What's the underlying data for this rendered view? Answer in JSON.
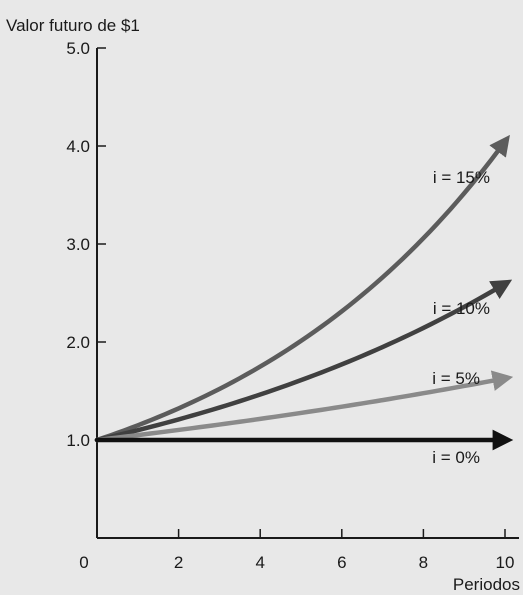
{
  "chart_data": {
    "type": "line",
    "ylabel": "Valor futuro de $1",
    "xlabel": "Periodos",
    "xlim": [
      0,
      10
    ],
    "ylim": [
      0,
      5
    ],
    "x_ticks": [
      0,
      2,
      4,
      6,
      8,
      10
    ],
    "x_tick_labels": [
      "0",
      "2",
      "4",
      "6",
      "8",
      "10"
    ],
    "y_ticks": [
      1,
      2,
      3,
      4,
      5
    ],
    "y_tick_labels": [
      "1.0",
      "2.0",
      "3.0",
      "4.0",
      "5.0"
    ],
    "grid": false,
    "legend": "none",
    "series": [
      {
        "name": "i = 15%",
        "rate": 0.15,
        "color": "#5c5c5c",
        "x": [
          0,
          1,
          2,
          3,
          4,
          5,
          6,
          7,
          8,
          9,
          10
        ],
        "values": [
          1.0,
          1.15,
          1.32,
          1.52,
          1.75,
          2.01,
          2.31,
          2.66,
          3.06,
          3.52,
          4.05
        ]
      },
      {
        "name": "i = 10%",
        "rate": 0.1,
        "color": "#404040",
        "x": [
          0,
          1,
          2,
          3,
          4,
          5,
          6,
          7,
          8,
          9,
          10
        ],
        "values": [
          1.0,
          1.1,
          1.21,
          1.33,
          1.46,
          1.61,
          1.77,
          1.95,
          2.14,
          2.36,
          2.59
        ]
      },
      {
        "name": "i = 5%",
        "rate": 0.05,
        "color": "#8a8a8a",
        "x": [
          0,
          1,
          2,
          3,
          4,
          5,
          6,
          7,
          8,
          9,
          10
        ],
        "values": [
          1.0,
          1.05,
          1.1,
          1.16,
          1.22,
          1.28,
          1.34,
          1.41,
          1.48,
          1.55,
          1.63
        ]
      },
      {
        "name": "i = 0%",
        "rate": 0.0,
        "color": "#111111",
        "x": [
          0,
          1,
          2,
          3,
          4,
          5,
          6,
          7,
          8,
          9,
          10
        ],
        "values": [
          1.0,
          1.0,
          1.0,
          1.0,
          1.0,
          1.0,
          1.0,
          1.0,
          1.0,
          1.0,
          1.0
        ]
      }
    ]
  }
}
